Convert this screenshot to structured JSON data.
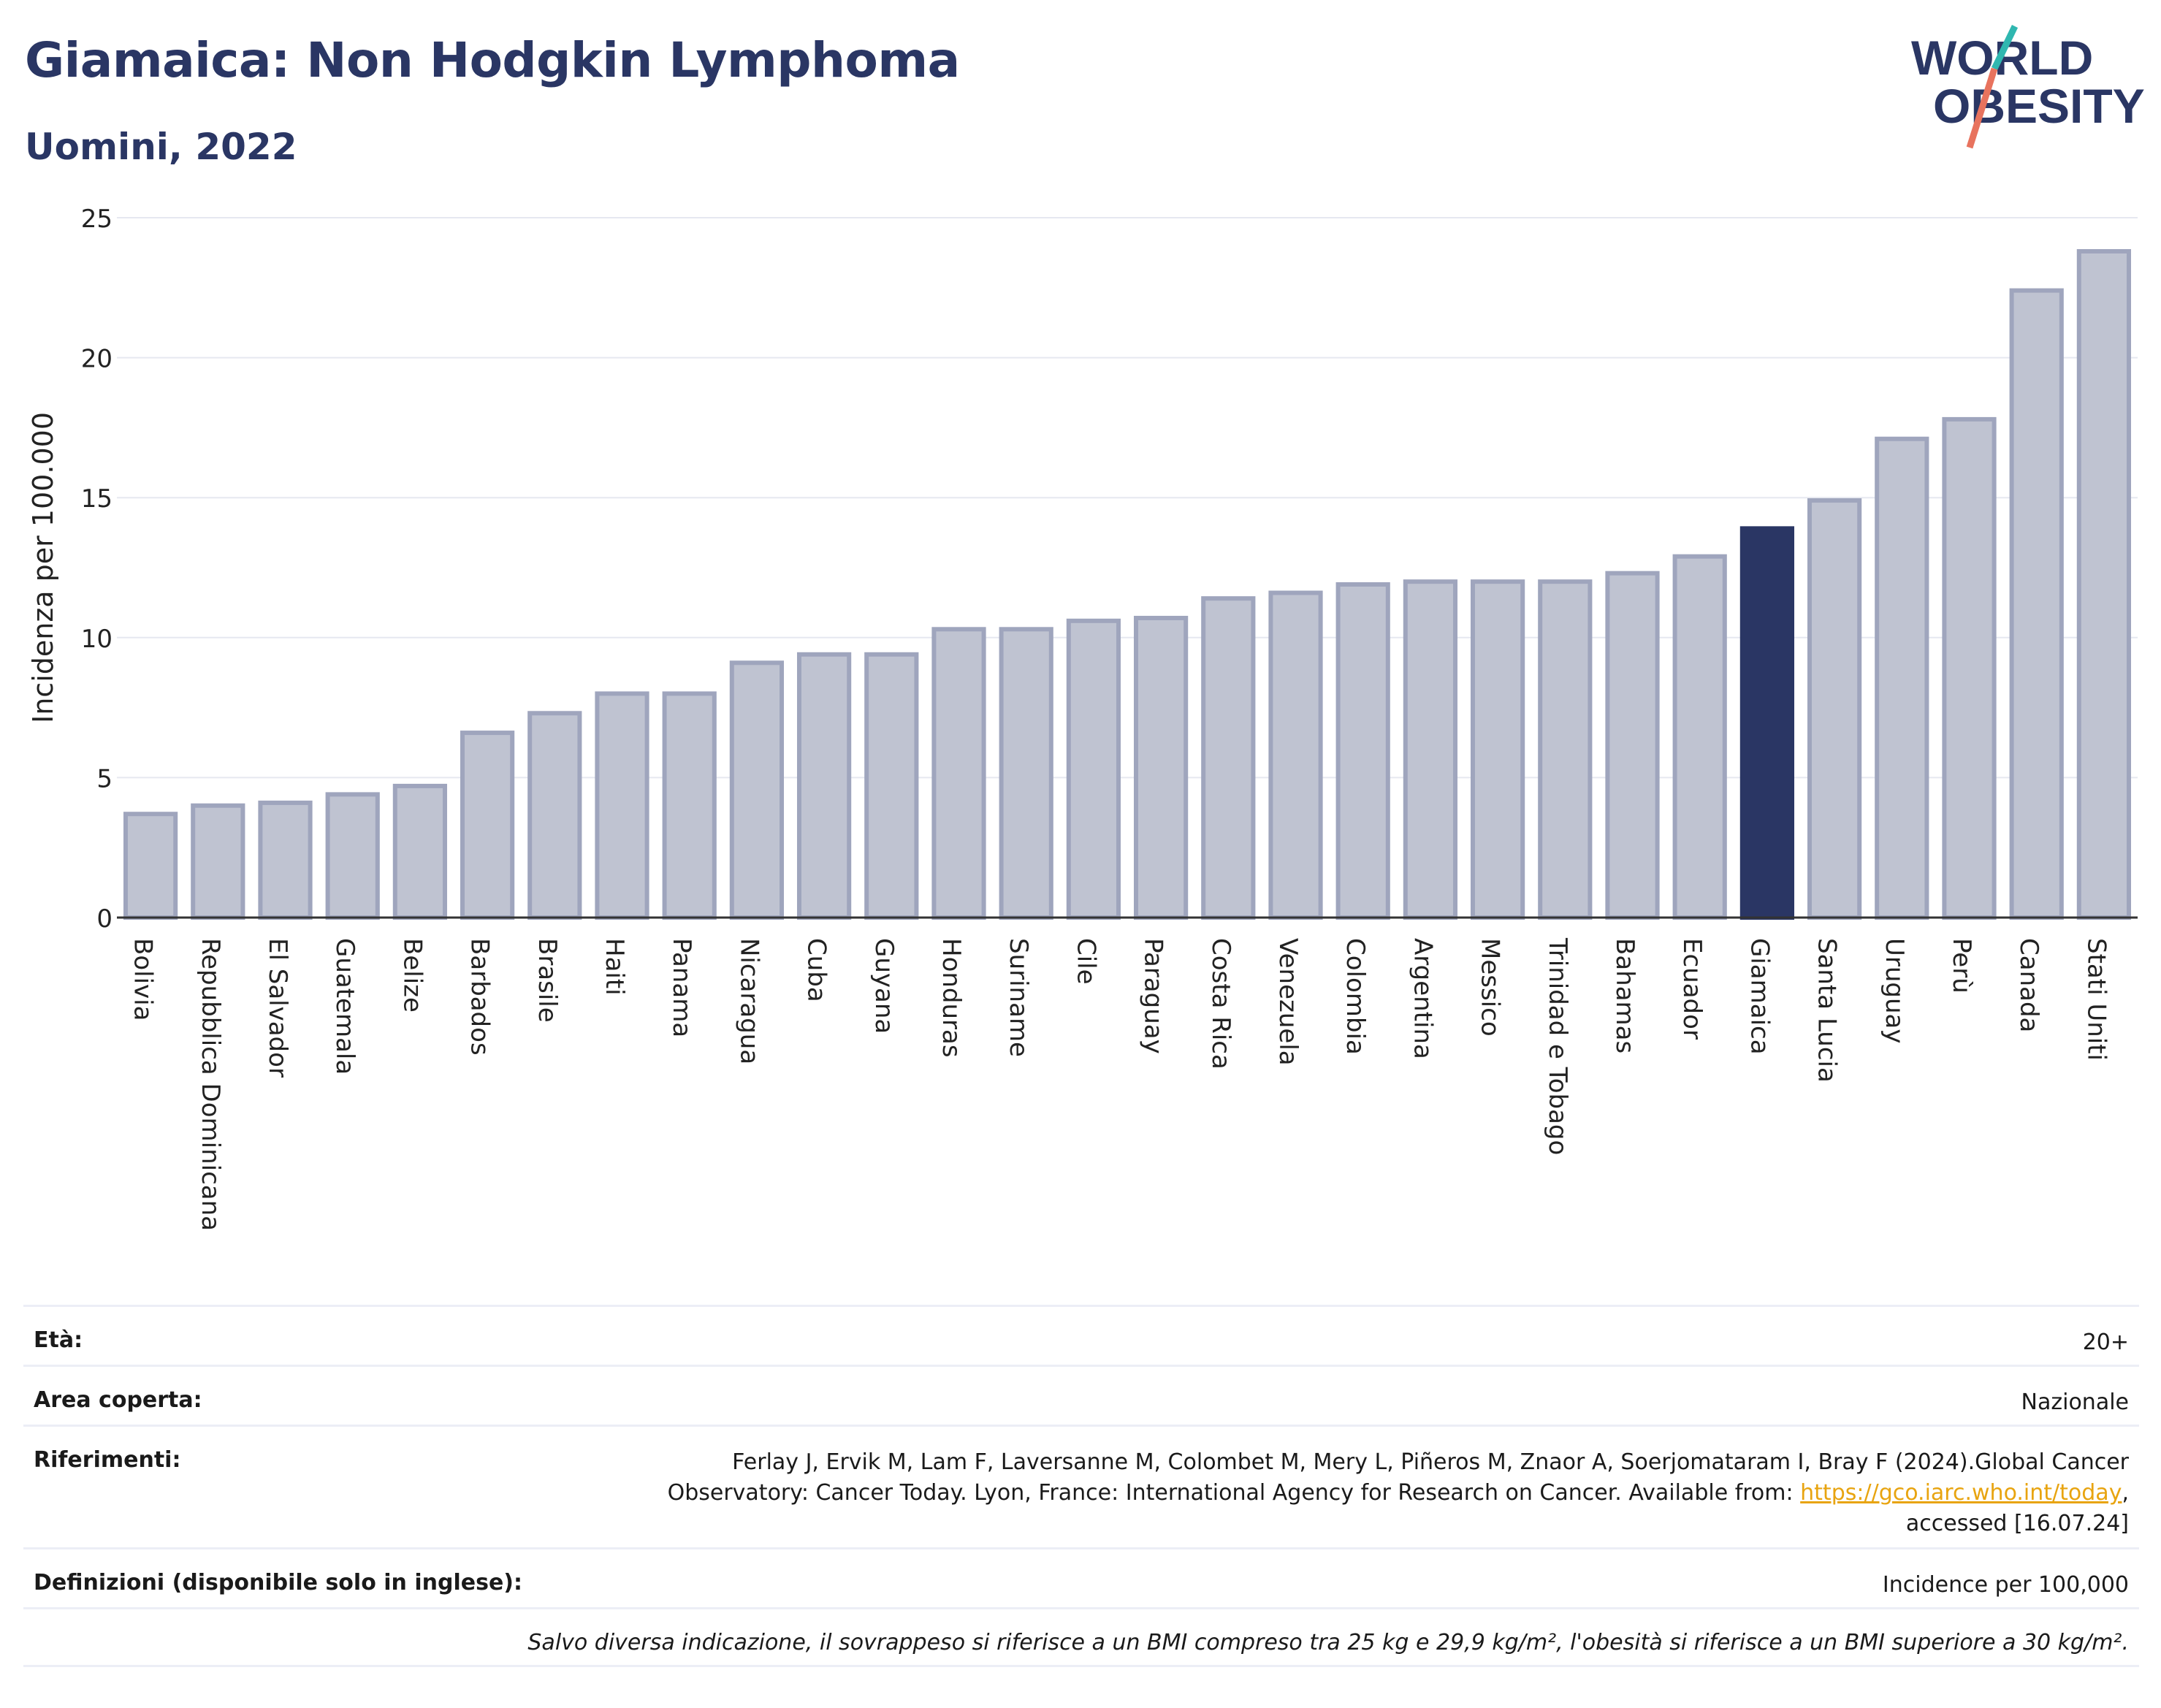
{
  "header": {
    "title": "Giamaica: Non Hodgkin Lymphoma",
    "subtitle": "Uomini, 2022"
  },
  "logo": {
    "line1": "WORLD",
    "line2": "OBESITY",
    "accent_teal": "#2fb7b0",
    "accent_coral": "#e8735e",
    "text_color": "#2a3664"
  },
  "colors": {
    "bar": "#bfc3d1",
    "bar_stroke": "#9fa5bd",
    "highlight": "#2a3664",
    "grid": "#e6e8f0",
    "axis": "#333333"
  },
  "chart_data": {
    "type": "bar",
    "title": "Giamaica: Non Hodgkin Lymphoma",
    "subtitle": "Uomini, 2022",
    "xlabel": "",
    "ylabel": "Incidenza per 100.000",
    "ylim": [
      0,
      25
    ],
    "yticks": [
      0,
      5,
      10,
      15,
      20,
      25
    ],
    "grid": true,
    "highlight": "Giamaica",
    "categories": [
      "Bolivia",
      "Repubblica Dominicana",
      "El Salvador",
      "Guatemala",
      "Belize",
      "Barbados",
      "Brasile",
      "Haiti",
      "Panama",
      "Nicaragua",
      "Cuba",
      "Guyana",
      "Honduras",
      "Suriname",
      "Cile",
      "Paraguay",
      "Costa Rica",
      "Venezuela",
      "Colombia",
      "Argentina",
      "Messico",
      "Trinidad e Tobago",
      "Bahamas",
      "Ecuador",
      "Giamaica",
      "Santa Lucia",
      "Uruguay",
      "Perù",
      "Canada",
      "Stati Uniti"
    ],
    "values": [
      3.7,
      4.0,
      4.1,
      4.4,
      4.7,
      6.6,
      7.3,
      8.0,
      8.0,
      9.1,
      9.4,
      9.4,
      10.3,
      10.3,
      10.6,
      10.7,
      11.4,
      11.6,
      11.9,
      12.0,
      12.0,
      12.0,
      12.3,
      12.9,
      13.9,
      14.9,
      17.1,
      17.8,
      22.4,
      23.8
    ]
  },
  "footer": {
    "age_label": "Età:",
    "age_value": "20+",
    "area_label": "Area coperta:",
    "area_value": "Nazionale",
    "refs_label": "Riferimenti:",
    "refs_line1": "Ferlay J, Ervik M, Lam F, Laversanne M, Colombet M, Mery L, Piñeros M, Znaor A, Soerjomataram I, Bray F (2024).Global Cancer",
    "refs_line2_pre": "Observatory: Cancer Today. Lyon, France: International Agency for Research on Cancer. Available from: ",
    "refs_link": "https://gco.iarc.who.int/today",
    "refs_line2_post": ",",
    "refs_line3": "accessed [16.07.24]",
    "defs_label": "Definizioni (disponibile solo in inglese):",
    "defs_value": "Incidence per 100,000",
    "note": "Salvo diversa indicazione, il sovrappeso si riferisce a un BMI compreso tra 25 kg e 29,9 kg/m², l'obesità si riferisce a un BMI superiore a 30 kg/m²."
  }
}
